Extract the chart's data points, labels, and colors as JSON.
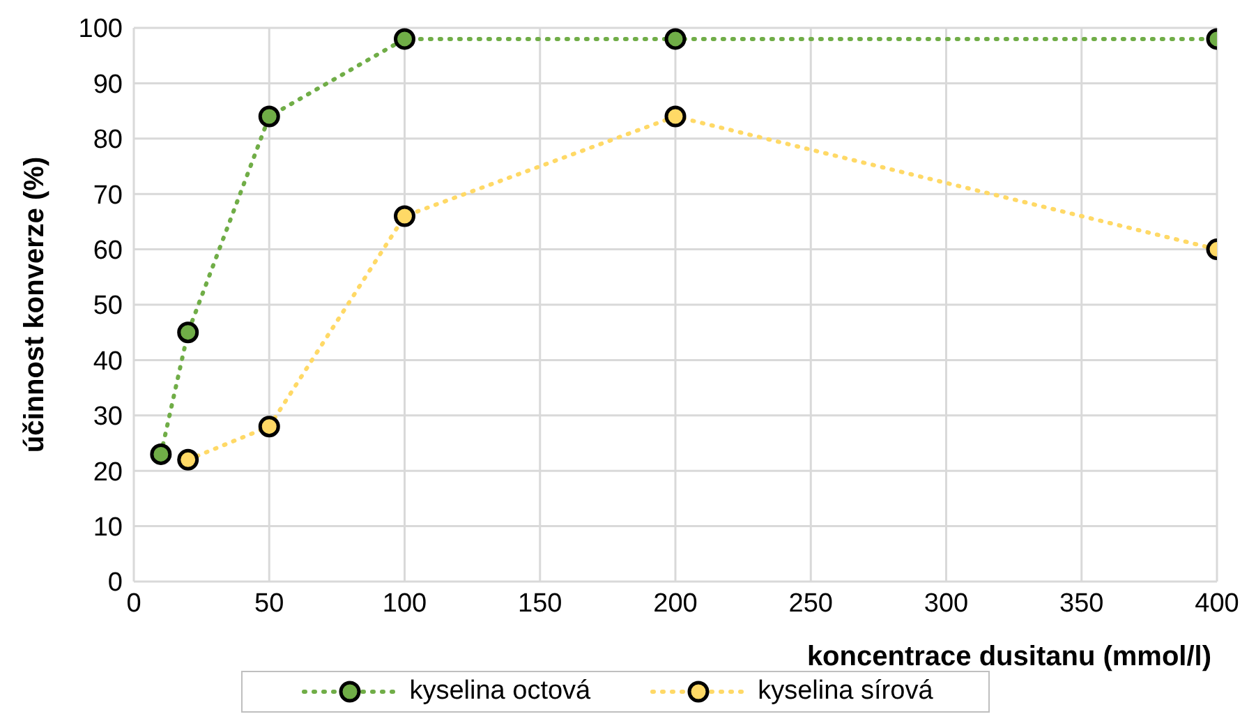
{
  "chart_data": {
    "type": "line",
    "xlabel": "koncentrace dusitanu (mmol/l)",
    "ylabel": "účinnost konverze (%)",
    "xlim": [
      0,
      400
    ],
    "xticks": [
      0,
      50,
      100,
      150,
      200,
      250,
      300,
      350,
      400
    ],
    "ylim": [
      0,
      100
    ],
    "yticks": [
      0,
      10,
      20,
      30,
      40,
      50,
      60,
      70,
      80,
      90,
      100
    ],
    "grid": true,
    "legend": "bottom",
    "marker": "circle",
    "line_style": "dotted",
    "series": [
      {
        "name": "kyselina octová",
        "color": "#70ad47",
        "x": [
          10,
          20,
          50,
          100,
          200,
          400
        ],
        "values": [
          23,
          45,
          84,
          98,
          98,
          98
        ]
      },
      {
        "name": "kyselina sírová",
        "color": "#ffd966",
        "x": [
          20,
          50,
          100,
          200,
          400
        ],
        "values": [
          22,
          28,
          66,
          84,
          60
        ]
      }
    ]
  }
}
